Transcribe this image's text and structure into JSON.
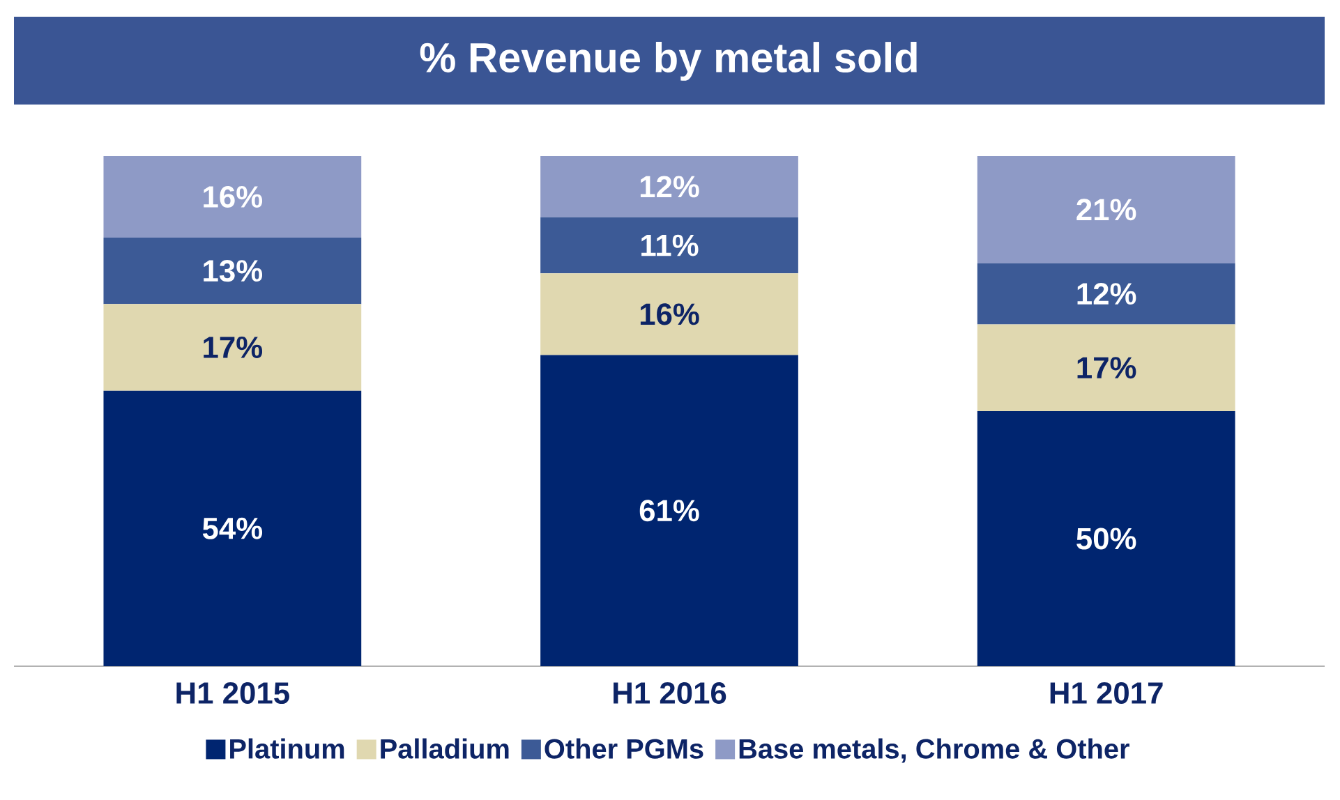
{
  "chart_data": {
    "type": "bar",
    "title": "% Revenue by metal sold",
    "stacked": true,
    "legend": "bottom",
    "categories": [
      "H1 2015",
      "H1 2016",
      "H1 2017"
    ],
    "series": [
      {
        "name": "Platinum",
        "color": "#002570",
        "values": [
          54,
          61,
          50
        ],
        "value_labels": [
          "54%",
          "61%",
          "50%"
        ]
      },
      {
        "name": "Palladium",
        "color": "#e0d8b0",
        "values": [
          17,
          16,
          17
        ],
        "value_labels": [
          "17%",
          "16%",
          "17%"
        ]
      },
      {
        "name": "Other PGMs",
        "color": "#3c5a96",
        "values": [
          13,
          11,
          12
        ],
        "value_labels": [
          "13%",
          "11%",
          "12%"
        ]
      },
      {
        "name": "Base metals, Chrome & Other",
        "color": "#8e9ac6",
        "values": [
          16,
          12,
          21
        ],
        "value_labels": [
          "16%",
          "12%",
          "21%"
        ]
      }
    ]
  }
}
